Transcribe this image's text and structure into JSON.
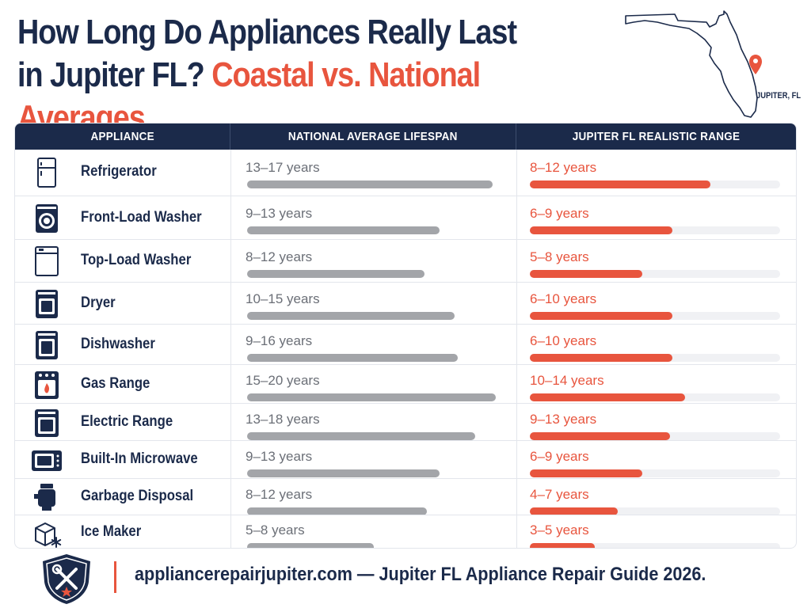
{
  "title": {
    "line1": "How Long Do Appliances Really Last",
    "line2_a": "in Jupiter FL?",
    "line2_b": "Coastal vs. National Averages."
  },
  "map": {
    "label": "JUPITER, FL",
    "marker_icon": "location-pin-icon"
  },
  "colors": {
    "navy": "#1b2a4a",
    "accent": "#e8553e",
    "national_bar": "#a3a5a9"
  },
  "headers": {
    "appliance": "APPLIANCE",
    "national": "NATIONAL AVERAGE LIFESPAN",
    "jupiter": "JUPITER FL REALISTIC RANGE"
  },
  "chart_data": {
    "type": "table",
    "columns": [
      "APPLIANCE",
      "NATIONAL AVERAGE LIFESPAN",
      "JUPITER FL REALISTIC RANGE"
    ],
    "rows": [
      {
        "icon": "refrigerator-icon",
        "name": "Refrigerator",
        "national": "13–17 years",
        "jupiter": "8–12 years",
        "national_bar_pct": 97,
        "jupiter_bar_pct": 72
      },
      {
        "icon": "front-load-washer-icon",
        "name": "Front-Load Washer",
        "national": "9–13 years",
        "jupiter": "6–9 years",
        "national_bar_pct": 76,
        "jupiter_bar_pct": 57
      },
      {
        "icon": "top-load-washer-icon",
        "name": "Top-Load Washer",
        "national": "8–12 years",
        "jupiter": "5–8 years",
        "national_bar_pct": 70,
        "jupiter_bar_pct": 45
      },
      {
        "icon": "dryer-icon",
        "name": "Dryer",
        "national": "10–15 years",
        "jupiter": "6–10 years",
        "national_bar_pct": 82,
        "jupiter_bar_pct": 57
      },
      {
        "icon": "dishwasher-icon",
        "name": "Dishwasher",
        "national": "9–16 years",
        "jupiter": "6–10 years",
        "national_bar_pct": 83,
        "jupiter_bar_pct": 57
      },
      {
        "icon": "gas-range-icon",
        "name": "Gas Range",
        "national": "15–20 years",
        "jupiter": "10–14 years",
        "national_bar_pct": 98,
        "jupiter_bar_pct": 62
      },
      {
        "icon": "electric-range-icon",
        "name": "Electric Range",
        "national": "13–18 years",
        "jupiter": "9–13 years",
        "national_bar_pct": 90,
        "jupiter_bar_pct": 56
      },
      {
        "icon": "microwave-icon",
        "name": "Built-In Microwave",
        "national": "9–13 years",
        "jupiter": "6–9 years",
        "national_bar_pct": 76,
        "jupiter_bar_pct": 45
      },
      {
        "icon": "garbage-disposal-icon",
        "name": "Garbage Disposal",
        "national": "8–12 years",
        "jupiter": "4–7 years",
        "national_bar_pct": 71,
        "jupiter_bar_pct": 35
      },
      {
        "icon": "ice-maker-icon",
        "name": "Ice Maker",
        "national": "5–8 years",
        "jupiter": "3–5 years",
        "national_bar_pct": 50,
        "jupiter_bar_pct": 26
      }
    ]
  },
  "footer": {
    "text": "appliancerepairjupiter.com — Jupiter FL Appliance Repair Guide 2026.",
    "badge_icon": "wrench-screwdriver-shield-icon"
  }
}
